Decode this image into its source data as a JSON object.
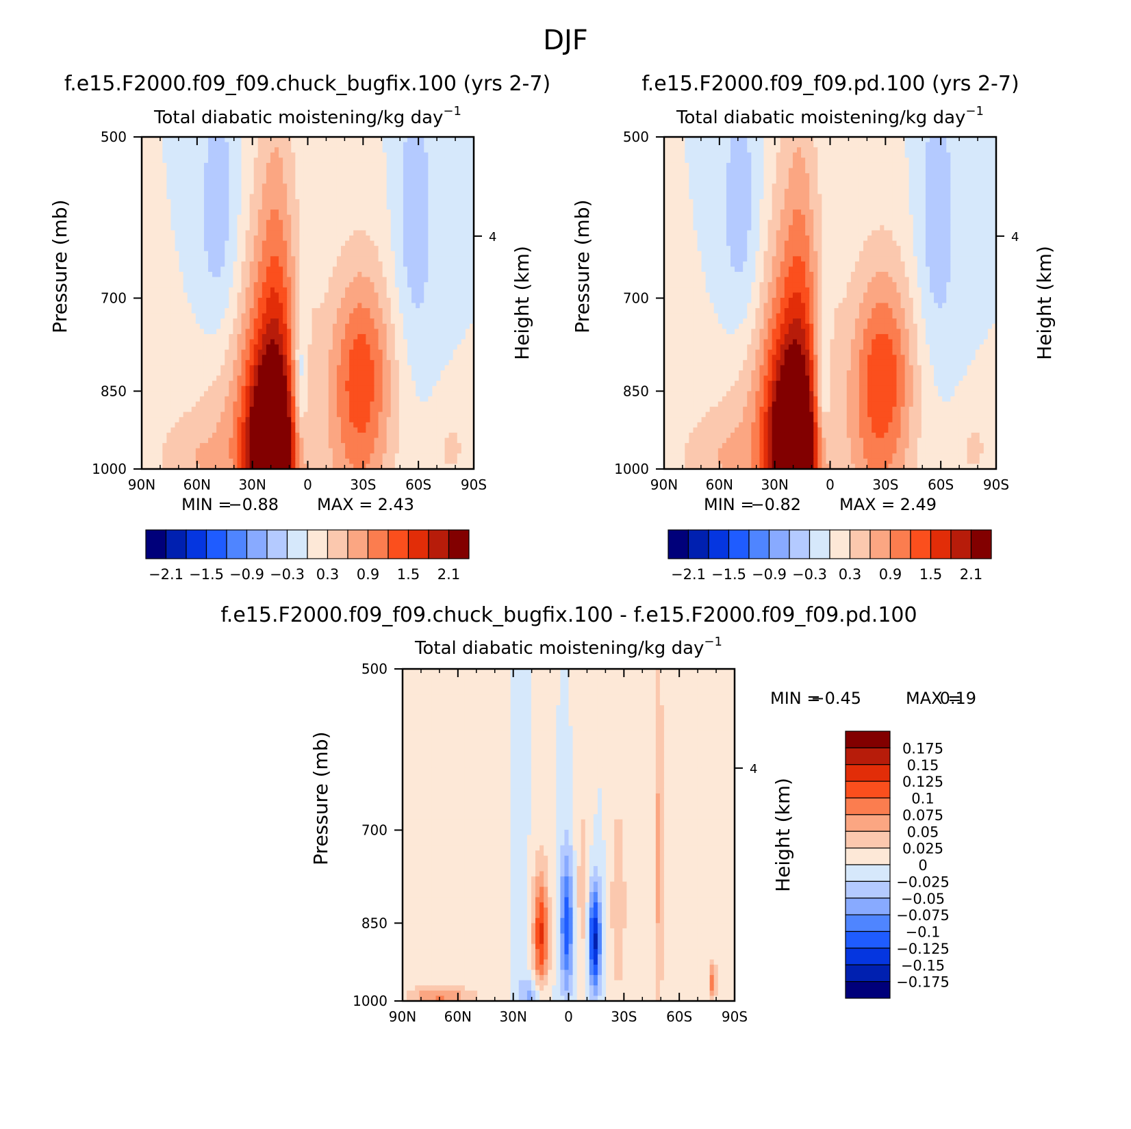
{
  "figure_title": "DJF",
  "colors": {
    "main_palette": [
      "#00007a",
      "#0020b0",
      "#0536e0",
      "#1f5cff",
      "#4f85ff",
      "#88aaff",
      "#b4caff",
      "#d6e8fb",
      "#fde8d7",
      "#fbc8ae",
      "#fba682",
      "#fb7d4f",
      "#fb4f1d",
      "#e22d08",
      "#b71c0a",
      "#820000"
    ],
    "diff_palette": [
      "#00007a",
      "#0020b0",
      "#0536e0",
      "#1f5cff",
      "#4f85ff",
      "#88aaff",
      "#b4caff",
      "#d6e8fb",
      "#fde8d7",
      "#fbc8ae",
      "#fba682",
      "#fb7d4f",
      "#fb4f1d",
      "#e22d08",
      "#b71c0a",
      "#820000"
    ]
  },
  "chart_data": [
    {
      "type": "heatmap",
      "title": "f.e15.F2000.f09_f09.chuck_bugfix.100 (yrs 2-7)",
      "subtitle": "Total diabatic moistening/kg day",
      "subtitle_sup": "-1",
      "xlabel": "",
      "ylabel": "Pressure (mb)",
      "y2label": "Height (km)",
      "x_ticks": [
        "90N",
        "60N",
        "30N",
        "0",
        "30S",
        "60S",
        "90S"
      ],
      "y_ticks": [
        "500",
        "700",
        "850",
        "1000"
      ],
      "y2_ticks": [
        "4"
      ],
      "xlim": [
        90,
        -90
      ],
      "ylim": [
        1000,
        500
      ],
      "min_label": "MIN =",
      "min_value": "-0.88",
      "max_label": "MAX =",
      "max_value": "2.43",
      "levels": [
        -2.1,
        -1.8,
        -1.5,
        -1.2,
        -0.9,
        -0.6,
        -0.3,
        0,
        0.3,
        0.6,
        0.9,
        1.2,
        1.5,
        1.8,
        2.1
      ],
      "colorbar_labels": [
        "-2.1",
        "-1.5",
        "-0.9",
        "-0.3",
        "0.3",
        "0.9",
        "1.5",
        "2.1"
      ],
      "features": [
        {
          "lat": 20,
          "p": 990,
          "amp": 2.4,
          "dlat": 8,
          "dp": 110
        },
        {
          "lat": 20,
          "p": 870,
          "amp": 1.35,
          "dlat": 12,
          "dp": 210
        },
        {
          "lat": 17,
          "p": 720,
          "amp": 0.45,
          "dlat": 6,
          "dp": 220
        },
        {
          "lat": 35,
          "p": 940,
          "amp": 0.55,
          "dlat": 22,
          "dp": 150
        },
        {
          "lat": -28,
          "p": 900,
          "amp": 1.05,
          "dlat": 13,
          "dp": 170
        },
        {
          "lat": -30,
          "p": 790,
          "amp": 0.5,
          "dlat": 11,
          "dp": 90
        },
        {
          "lat": -78,
          "p": 960,
          "amp": 0.35,
          "dlat": 8,
          "dp": 60
        },
        {
          "lat": 65,
          "p": 980,
          "amp": 0.35,
          "dlat": 15,
          "dp": 60
        },
        {
          "lat": 4,
          "p": 835,
          "amp": -0.85,
          "dlat": 3,
          "dp": 90
        },
        {
          "lat": 48,
          "p": 600,
          "amp": -0.5,
          "dlat": 9,
          "dp": 130
        },
        {
          "lat": -58,
          "p": 600,
          "amp": -0.5,
          "dlat": 8,
          "dp": 130
        }
      ]
    },
    {
      "type": "heatmap",
      "title": "f.e15.F2000.f09_f09.pd.100 (yrs 2-7)",
      "subtitle": "Total diabatic moistening/kg day",
      "subtitle_sup": "-1",
      "xlabel": "",
      "ylabel": "Pressure (mb)",
      "y2label": "Height (km)",
      "x_ticks": [
        "90N",
        "60N",
        "30N",
        "0",
        "30S",
        "60S",
        "90S"
      ],
      "y_ticks": [
        "500",
        "700",
        "850",
        "1000"
      ],
      "y2_ticks": [
        "4"
      ],
      "xlim": [
        90,
        -90
      ],
      "ylim": [
        1000,
        500
      ],
      "min_label": "MIN =",
      "min_value": "-0.82",
      "max_label": "MAX =",
      "max_value": "2.49",
      "levels": [
        -2.1,
        -1.8,
        -1.5,
        -1.2,
        -0.9,
        -0.6,
        -0.3,
        0,
        0.3,
        0.6,
        0.9,
        1.2,
        1.5,
        1.8,
        2.1
      ],
      "colorbar_labels": [
        "-2.1",
        "-1.5",
        "-0.9",
        "-0.3",
        "0.3",
        "0.9",
        "1.5",
        "2.1"
      ],
      "features": [
        {
          "lat": 20,
          "p": 990,
          "amp": 2.45,
          "dlat": 8,
          "dp": 110
        },
        {
          "lat": 21,
          "p": 870,
          "amp": 1.4,
          "dlat": 12,
          "dp": 210
        },
        {
          "lat": 16,
          "p": 720,
          "amp": 0.45,
          "dlat": 6,
          "dp": 220
        },
        {
          "lat": 35,
          "p": 940,
          "amp": 0.55,
          "dlat": 22,
          "dp": 150
        },
        {
          "lat": -27,
          "p": 900,
          "amp": 1.1,
          "dlat": 13,
          "dp": 170
        },
        {
          "lat": -30,
          "p": 790,
          "amp": 0.5,
          "dlat": 11,
          "dp": 90
        },
        {
          "lat": -78,
          "p": 960,
          "amp": 0.35,
          "dlat": 8,
          "dp": 60
        },
        {
          "lat": 65,
          "p": 980,
          "amp": 0.35,
          "dlat": 15,
          "dp": 60
        },
        {
          "lat": 4,
          "p": 835,
          "amp": -0.8,
          "dlat": 3,
          "dp": 90
        },
        {
          "lat": 48,
          "p": 600,
          "amp": -0.5,
          "dlat": 9,
          "dp": 130
        },
        {
          "lat": -58,
          "p": 600,
          "amp": -0.5,
          "dlat": 8,
          "dp": 130
        }
      ]
    },
    {
      "type": "heatmap",
      "title": "f.e15.F2000.f09_f09.chuck_bugfix.100 - f.e15.F2000.f09_f09.pd.100",
      "subtitle": "Total diabatic moistening/kg day",
      "subtitle_sup": "-1",
      "xlabel": "",
      "ylabel": "Pressure (mb)",
      "y2label": "Height (km)",
      "x_ticks": [
        "90N",
        "60N",
        "30N",
        "0",
        "30S",
        "60S",
        "90S"
      ],
      "y_ticks": [
        "500",
        "700",
        "850",
        "1000"
      ],
      "y2_ticks": [
        "4"
      ],
      "xlim": [
        90,
        -90
      ],
      "ylim": [
        1000,
        500
      ],
      "min_label": "MIN =",
      "min_value": "-0.45",
      "max_label": "MAX =",
      "max_value": "0.19",
      "levels": [
        -0.175,
        -0.15,
        -0.125,
        -0.1,
        -0.075,
        -0.05,
        -0.025,
        0,
        0.025,
        0.05,
        0.075,
        0.1,
        0.125,
        0.15,
        0.175
      ],
      "colorbar_labels": [
        "0.175",
        "0.15",
        "0.125",
        "0.1",
        "0.075",
        "0.05",
        "0.025",
        "0",
        "-0.025",
        "-0.05",
        "-0.075",
        "-0.1",
        "-0.125",
        "-0.15",
        "-0.175"
      ],
      "features": [
        {
          "lat": 15,
          "p": 870,
          "amp": 0.13,
          "dlat": 3,
          "dp": 80
        },
        {
          "lat": 1,
          "p": 855,
          "amp": -0.12,
          "dlat": 2.5,
          "dp": 90
        },
        {
          "lat": -14,
          "p": 880,
          "amp": -0.16,
          "dlat": 2.5,
          "dp": 70
        },
        {
          "lat": -8,
          "p": 800,
          "amp": 0.04,
          "dlat": 3,
          "dp": 120
        },
        {
          "lat": -27,
          "p": 820,
          "amp": 0.05,
          "dlat": 3,
          "dp": 120
        },
        {
          "lat": -49,
          "p": 750,
          "amp": 0.06,
          "dlat": 2,
          "dp": 200
        },
        {
          "lat": 27,
          "p": 700,
          "amp": -0.03,
          "dlat": 3,
          "dp": 250
        },
        {
          "lat": 40,
          "p": 650,
          "amp": 0.02,
          "dlat": 10,
          "dp": 300
        },
        {
          "lat": 70,
          "p": 990,
          "amp": 0.08,
          "dlat": 12,
          "dp": 15
        },
        {
          "lat": 20,
          "p": 990,
          "amp": -0.06,
          "dlat": 5,
          "dp": 25
        },
        {
          "lat": -78,
          "p": 960,
          "amp": 0.09,
          "dlat": 1.5,
          "dp": 30
        }
      ]
    }
  ]
}
